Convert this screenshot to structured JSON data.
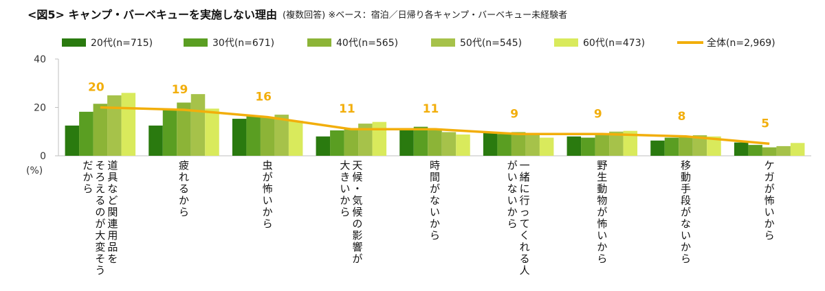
{
  "title": "<図5> キャンプ・バーベキューを実施しない理由",
  "subtitle": "(複数回答) ※ベース：宿泊／日帰り各キャンプ・バーベキュー未経験者",
  "colors": {
    "age20": "#2a7a0f",
    "age30": "#5a9e22",
    "age40": "#8cb437",
    "age50": "#a6c24a",
    "age60": "#d9ea5c",
    "total_line": "#f2ae0b",
    "axis": "#bfbfbf",
    "label": "#f2ae0b"
  },
  "chart_data": {
    "type": "bar",
    "title": "<図5> キャンプ・バーベキューを実施しない理由",
    "ylabel": "(%)",
    "ylim": [
      0,
      40
    ],
    "yticks": [
      0,
      20,
      40
    ],
    "grid": false,
    "legend_position": "top",
    "categories": [
      "道具など関連用品をそろえるのが大変そうだから",
      "疲れるから",
      "虫が怖いから",
      "天候・気候の影響が大きいから",
      "時間がないから",
      "一緒に行ってくれる人がいないから",
      "野生動物が怖いから",
      "移動手段がないから",
      "ケガが怖いから"
    ],
    "category_lines": [
      [
        "道具など関連用品を",
        "そろえるのが大変そう",
        "だから"
      ],
      [
        "疲れるから"
      ],
      [
        "虫が怖いから"
      ],
      [
        "天候・気候の影響が",
        "大きいから"
      ],
      [
        "時間がないから"
      ],
      [
        "一緒に行ってくれる人",
        "がいないから"
      ],
      [
        "野生動物が怖いから"
      ],
      [
        "移動手段がないから"
      ],
      [
        "ケガが怖いから"
      ]
    ],
    "series": [
      {
        "name": "20代(n=715)",
        "values": [
          12.5,
          12.5,
          15.3,
          8.0,
          10.5,
          9.5,
          8.0,
          6.3,
          5.5
        ]
      },
      {
        "name": "30代(n=671)",
        "values": [
          18.2,
          19.0,
          16.3,
          10.5,
          12.0,
          9.0,
          7.5,
          7.5,
          4.5
        ]
      },
      {
        "name": "40代(n=565)",
        "values": [
          21.5,
          22.0,
          16.0,
          11.0,
          10.5,
          9.8,
          8.5,
          7.8,
          3.5
        ]
      },
      {
        "name": "50代(n=545)",
        "values": [
          25.0,
          25.5,
          17.0,
          13.3,
          9.8,
          9.5,
          10.0,
          8.5,
          4.0
        ]
      },
      {
        "name": "60代(n=473)",
        "values": [
          26.0,
          19.5,
          14.5,
          14.0,
          8.8,
          7.5,
          10.3,
          8.0,
          5.3
        ]
      }
    ],
    "total": {
      "name": "全体(n=2,969)",
      "values": [
        20,
        19,
        16,
        11,
        11,
        9,
        9,
        8,
        5
      ],
      "labels": [
        "20",
        "19",
        "16",
        "11",
        "11",
        "9",
        "9",
        "8",
        "5"
      ]
    }
  }
}
